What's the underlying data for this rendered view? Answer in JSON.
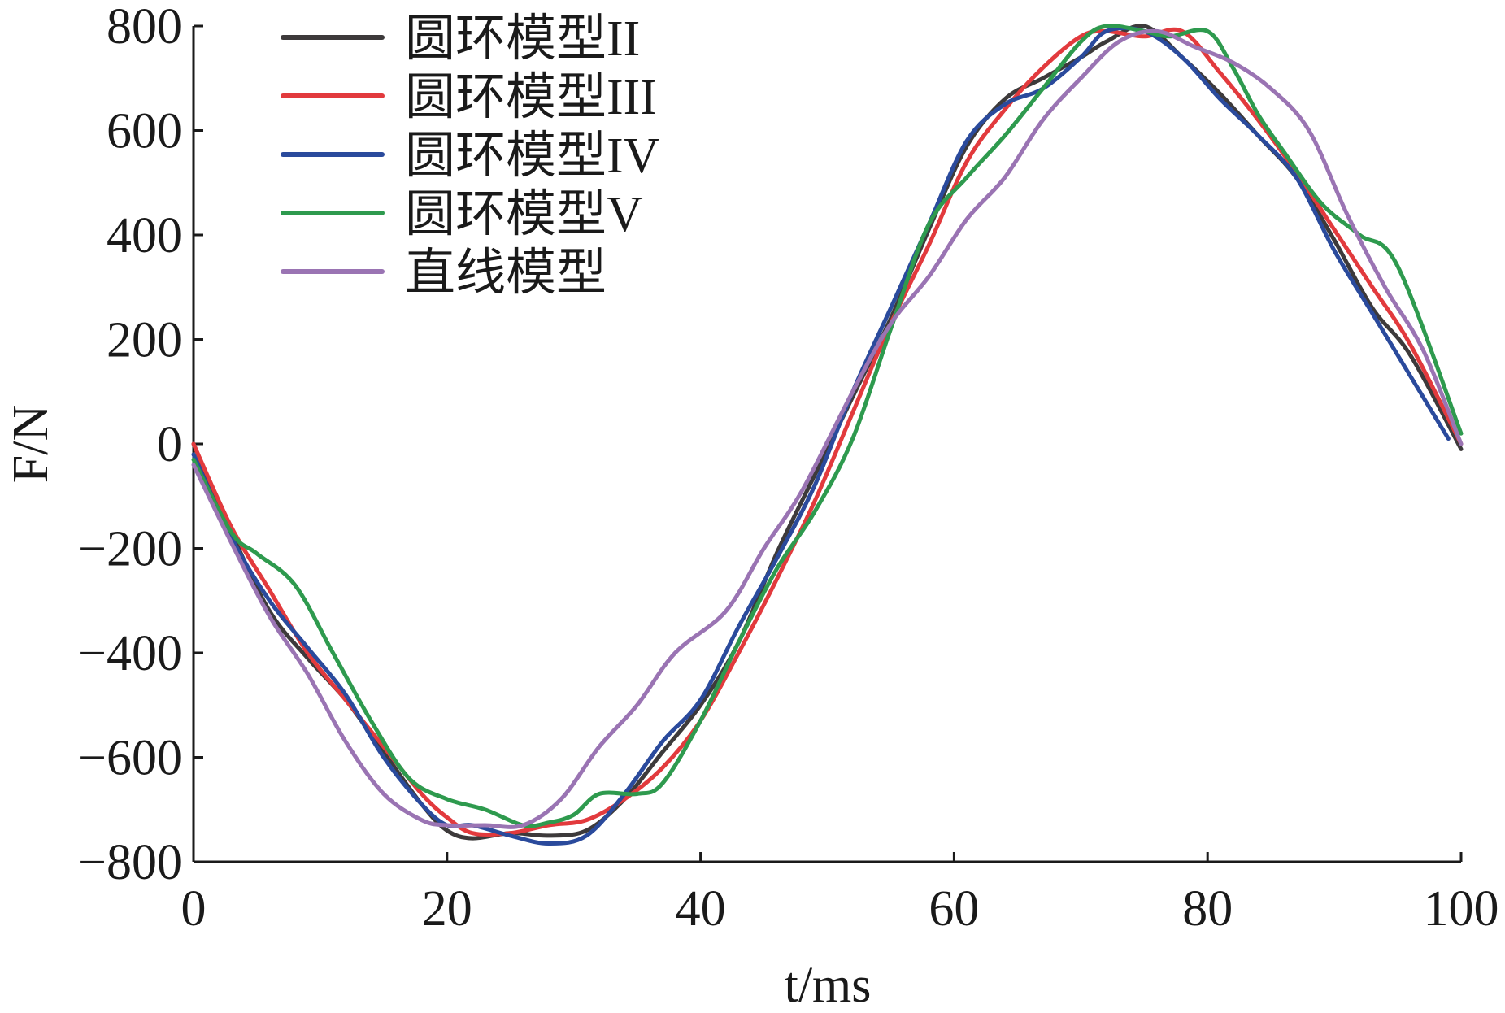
{
  "chart_data": {
    "type": "line",
    "xlabel": "t/ms",
    "ylabel": "F/N",
    "xlim": [
      0,
      100
    ],
    "ylim": [
      -800,
      800
    ],
    "xticks": [
      0,
      20,
      40,
      60,
      80,
      100
    ],
    "yticks": [
      800,
      600,
      400,
      200,
      0,
      -200,
      -400,
      -600,
      -800
    ],
    "ytick_labels": [
      "800",
      "600",
      "400",
      "200",
      "0",
      "−200",
      "−400",
      "−600",
      "−800"
    ],
    "xtick_labels": [
      "0",
      "20",
      "40",
      "60",
      "80",
      "100"
    ],
    "legend_position": "top-left",
    "grid": false,
    "series": [
      {
        "name": "圆环模型II",
        "color": "#3d3a3b",
        "x": [
          0,
          3,
          6,
          9,
          12,
          15,
          18,
          20,
          22,
          25,
          28,
          31,
          34,
          37,
          40,
          43,
          46,
          49,
          52,
          55,
          58,
          61,
          64,
          67,
          70,
          72,
          75,
          78,
          81,
          84,
          87,
          90,
          93,
          96,
          100
        ],
        "y": [
          0,
          -170,
          -320,
          -410,
          -490,
          -590,
          -690,
          -740,
          -755,
          -745,
          -750,
          -740,
          -680,
          -590,
          -500,
          -380,
          -210,
          -60,
          90,
          240,
          410,
          570,
          660,
          700,
          740,
          770,
          800,
          740,
          670,
          590,
          510,
          390,
          260,
          170,
          -10
        ]
      },
      {
        "name": "圆环模型III",
        "color": "#e23a3d",
        "x": [
          0,
          3,
          6,
          9,
          12,
          15,
          18,
          20,
          22,
          25,
          28,
          31,
          34,
          37,
          40,
          43,
          46,
          49,
          52,
          55,
          58,
          61,
          64,
          67,
          70,
          72,
          75,
          78,
          81,
          84,
          87,
          90,
          93,
          96,
          100
        ],
        "y": [
          0,
          -160,
          -280,
          -400,
          -490,
          -580,
          -670,
          -715,
          -745,
          -745,
          -730,
          -720,
          -680,
          -620,
          -530,
          -400,
          -260,
          -110,
          60,
          230,
          380,
          540,
          640,
          720,
          780,
          790,
          780,
          790,
          710,
          620,
          520,
          410,
          300,
          190,
          0
        ]
      },
      {
        "name": "圆环模型IV",
        "color": "#2a4a9c",
        "x": [
          0,
          3,
          6,
          9,
          12,
          15,
          18,
          20,
          22,
          25,
          28,
          31,
          34,
          37,
          40,
          43,
          46,
          49,
          52,
          55,
          58,
          61,
          64,
          67,
          70,
          72,
          75,
          78,
          81,
          84,
          87,
          90,
          93,
          96,
          99
        ],
        "y": [
          -20,
          -180,
          -300,
          -390,
          -480,
          -600,
          -690,
          -730,
          -730,
          -750,
          -765,
          -750,
          -670,
          -570,
          -490,
          -350,
          -220,
          -80,
          100,
          260,
          420,
          580,
          650,
          680,
          740,
          790,
          790,
          740,
          660,
          590,
          510,
          370,
          250,
          130,
          10
        ]
      },
      {
        "name": "圆环模型V",
        "color": "#2e9a4e",
        "x": [
          0,
          3,
          5,
          8,
          11,
          14,
          17,
          20,
          23,
          26,
          28,
          30,
          32,
          35,
          37,
          40,
          43,
          46,
          49,
          52,
          55,
          58,
          61,
          64,
          67,
          70,
          72,
          75,
          77,
          80,
          82,
          84,
          86,
          89,
          92,
          95,
          100
        ],
        "y": [
          -30,
          -170,
          -210,
          -270,
          -400,
          -530,
          -640,
          -680,
          -700,
          -730,
          -725,
          -710,
          -670,
          -670,
          -650,
          -530,
          -380,
          -240,
          -130,
          10,
          220,
          420,
          510,
          590,
          680,
          770,
          800,
          790,
          780,
          790,
          720,
          630,
          560,
          460,
          400,
          340,
          20
        ]
      },
      {
        "name": "直线模型",
        "color": "#9a74b3",
        "x": [
          0,
          3,
          6,
          9,
          12,
          15,
          18,
          20,
          23,
          26,
          29,
          32,
          35,
          38,
          42,
          45,
          48,
          52,
          55,
          58,
          61,
          64,
          67,
          70,
          73,
          76,
          79,
          82,
          85,
          88,
          91,
          94,
          97,
          100
        ],
        "y": [
          -40,
          -190,
          -330,
          -440,
          -570,
          -670,
          -720,
          -730,
          -730,
          -730,
          -680,
          -580,
          -500,
          -400,
          -320,
          -200,
          -90,
          100,
          230,
          320,
          430,
          510,
          620,
          700,
          770,
          790,
          760,
          730,
          680,
          600,
          440,
          300,
          180,
          0
        ]
      }
    ]
  }
}
